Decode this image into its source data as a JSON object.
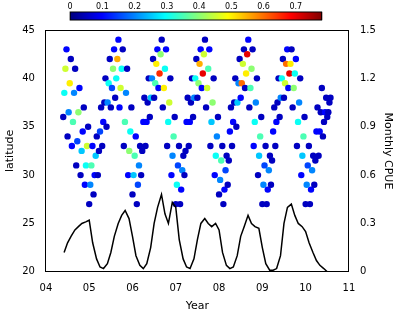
{
  "chart_data": {
    "type": "scatter",
    "x_label": "Year",
    "y_label": "latitude",
    "y2_label": "Monthly CPUE",
    "xlim": [
      4,
      11
    ],
    "xticks": [
      {
        "value": 4,
        "label": "04"
      },
      {
        "value": 5,
        "label": "05"
      },
      {
        "value": 6,
        "label": "06"
      },
      {
        "value": 7,
        "label": "07"
      },
      {
        "value": 8,
        "label": "08"
      },
      {
        "value": 9,
        "label": "09"
      },
      10,
      11
    ],
    "ylim": [
      20,
      45
    ],
    "yticks": [
      20,
      25,
      30,
      35,
      40,
      45
    ],
    "y2lim": [
      0,
      1.5
    ],
    "y2ticks": [
      0,
      0.3,
      0.6,
      0.9,
      1.2,
      1.5
    ],
    "grid": false,
    "colorbar": {
      "range": [
        0,
        0.78
      ],
      "ticks": [
        0,
        0.1,
        0.2,
        0.3,
        0.4,
        0.5,
        0.6,
        0.7
      ]
    },
    "series": [
      {
        "type": "scatter",
        "marker": "circle",
        "x": [
          4.4,
          4.425,
          4.45,
          4.475,
          4.5,
          4.525,
          4.55,
          4.575,
          4.6,
          4.625,
          4.65,
          4.675,
          4.7,
          4.725,
          4.75,
          4.775,
          4.8,
          4.825,
          4.85,
          4.875,
          4.9,
          4.925,
          4.95,
          4.975,
          5.0,
          5.025,
          5.05,
          5.075,
          5.1,
          5.125,
          5.15,
          5.175,
          5.2,
          5.225,
          5.25,
          5.275,
          5.3,
          5.325,
          5.35,
          5.375,
          5.4,
          5.425,
          5.45,
          5.475,
          5.5,
          5.525,
          5.55,
          5.575,
          5.6,
          5.625,
          5.65,
          5.675,
          5.7,
          5.725,
          5.75,
          5.775,
          5.8,
          5.825,
          5.85,
          5.875,
          5.9,
          5.925,
          5.95,
          5.975,
          6.0,
          6.025,
          6.05,
          6.075,
          6.1,
          6.125,
          6.15,
          6.175,
          6.2,
          6.225,
          6.25,
          6.275,
          6.3,
          6.325,
          6.35,
          6.375,
          6.4,
          6.425,
          6.45,
          6.475,
          6.5,
          6.525,
          6.55,
          6.575,
          6.6,
          6.625,
          6.65,
          6.675,
          6.7,
          6.725,
          6.75,
          6.775,
          6.8,
          6.825,
          6.85,
          6.875,
          6.9,
          6.925,
          6.95,
          6.975,
          7.0,
          7.025,
          7.05,
          7.075,
          7.1,
          7.125,
          7.15,
          7.175,
          7.2,
          7.225,
          7.25,
          7.275,
          7.3,
          7.325,
          7.35,
          7.375,
          7.4,
          7.425,
          7.45,
          7.475,
          7.5,
          7.525,
          7.55,
          7.575,
          7.6,
          7.625,
          7.65,
          7.675,
          7.7,
          7.725,
          7.75,
          7.775,
          7.8,
          7.825,
          7.85,
          7.875,
          7.9,
          7.925,
          7.95,
          7.975,
          8.0,
          8.025,
          8.05,
          8.075,
          8.1,
          8.125,
          8.15,
          8.175,
          8.2,
          8.225,
          8.25,
          8.275,
          8.3,
          8.325,
          8.35,
          8.375,
          8.4,
          8.425,
          8.45,
          8.475,
          8.5,
          8.525,
          8.55,
          8.575,
          8.6,
          8.625,
          8.65,
          8.675,
          8.7,
          8.725,
          8.75,
          8.775,
          8.8,
          8.825,
          8.85,
          8.875,
          8.9,
          8.925,
          8.95,
          8.975,
          9.0,
          9.025,
          9.05,
          9.075,
          9.1,
          9.125,
          9.15,
          9.175,
          9.2,
          9.225,
          9.25,
          9.275,
          9.3,
          9.325,
          9.35,
          9.375,
          9.4,
          9.425,
          9.45,
          9.475,
          9.5,
          9.525,
          9.55,
          9.575,
          9.6,
          9.625,
          9.65,
          9.675,
          9.7,
          9.725,
          9.75,
          9.775,
          9.8,
          9.825,
          9.85,
          9.875,
          9.9,
          9.925,
          9.95,
          9.975,
          10.0,
          10.025,
          10.05,
          10.075,
          10.1,
          10.125,
          10.15,
          10.175,
          10.2,
          10.225,
          10.25,
          10.275,
          10.3,
          10.325,
          10.35,
          10.375,
          10.4,
          10.425,
          10.45,
          10.475,
          10.5,
          10.525,
          10.55,
          10.575
        ],
        "values": [
          36,
          38.5,
          41,
          43,
          34,
          36.5,
          39.5,
          42,
          33,
          35.5,
          38.5,
          41,
          31,
          33.5,
          36.5,
          39,
          30,
          32.5,
          34.5,
          37,
          29,
          31,
          33,
          35,
          27,
          29,
          31,
          33,
          28,
          30,
          32,
          34,
          30,
          32.5,
          34.5,
          37,
          33,
          35.5,
          37.5,
          40,
          35,
          37.5,
          39.5,
          42,
          37,
          39,
          41,
          43,
          38,
          40,
          42,
          44,
          37,
          39,
          41,
          43,
          33,
          35.5,
          38.5,
          41,
          30,
          32.5,
          34.5,
          37,
          28,
          30,
          32,
          34,
          27,
          29,
          31,
          33,
          30,
          32.5,
          35.5,
          38,
          33,
          35.5,
          37.5,
          40,
          36,
          38,
          40,
          42,
          38,
          39.5,
          41.5,
          43,
          39,
          40.5,
          42.5,
          44,
          37,
          39,
          41,
          43,
          33,
          35.5,
          37.5,
          40,
          30,
          32,
          34,
          36,
          27,
          29,
          31,
          33,
          27,
          28.5,
          30.5,
          32,
          30,
          32.5,
          35.5,
          38,
          33,
          35.5,
          37.5,
          40,
          36,
          38,
          40,
          42,
          38,
          39.5,
          41.5,
          43,
          39,
          40.5,
          42.5,
          44,
          37,
          39,
          41,
          43,
          33,
          35.5,
          37.5,
          40,
          30,
          32,
          34,
          36,
          28,
          29.5,
          31.5,
          33,
          27,
          28.5,
          30.5,
          32,
          29,
          31.5,
          34.5,
          37,
          33,
          35.5,
          37.5,
          40,
          35,
          37.5,
          39.5,
          42,
          38,
          39.5,
          41.5,
          43,
          39,
          40.5,
          42.5,
          44,
          37,
          39,
          41,
          43,
          33,
          35.5,
          37.5,
          40,
          30,
          32,
          34,
          36,
          27,
          29,
          31,
          33,
          27,
          28.5,
          30.5,
          32,
          29,
          31.5,
          34.5,
          37,
          33,
          35.5,
          37.5,
          40,
          36,
          38,
          40,
          42,
          38,
          39.5,
          41.5,
          43,
          39,
          40.5,
          41.5,
          43,
          37,
          39,
          40.5,
          42,
          33,
          35.5,
          37.5,
          40,
          30,
          32,
          34,
          36,
          27,
          29,
          31,
          33,
          27,
          28.5,
          30.5,
          32,
          29,
          31.5,
          34.5,
          37,
          32,
          34.5,
          36.5,
          39,
          34,
          35.5,
          36.5,
          38,
          36,
          36.5,
          37.5,
          38
        ],
        "color_values": [
          0.05,
          0.3,
          0.45,
          0.1,
          0.05,
          0.2,
          0.5,
          0.05,
          0.1,
          0.35,
          0.2,
          0.05,
          0.05,
          0.15,
          0.4,
          0.1,
          0.05,
          0.25,
          0.1,
          0.05,
          0.1,
          0.3,
          0.45,
          0.05,
          0.05,
          0.2,
          0.35,
          0.1,
          0.05,
          0.1,
          0.25,
          0.05,
          0.05,
          0.05,
          0.15,
          0.05,
          0.05,
          0.1,
          0.05,
          0.05,
          0.05,
          0.2,
          0.3,
          0.05,
          0.05,
          0.15,
          0.4,
          0.1,
          0.05,
          0.3,
          0.55,
          0.1,
          0.1,
          0.45,
          0.3,
          0.05,
          0.05,
          0.35,
          0.2,
          0.05,
          0.1,
          0.4,
          0.3,
          0.05,
          0.05,
          0.25,
          0.35,
          0.1,
          0.05,
          0.15,
          0.2,
          0.05,
          0.05,
          0.05,
          0.1,
          0.05,
          0.05,
          0.1,
          0.05,
          0.05,
          0.05,
          0.25,
          0.2,
          0.05,
          0.05,
          0.35,
          0.5,
          0.1,
          0.1,
          0.65,
          0.4,
          0.05,
          0.05,
          0.5,
          0.3,
          0.1,
          0.05,
          0.3,
          0.45,
          0.05,
          0.1,
          0.2,
          0.35,
          0.05,
          0.05,
          0.3,
          0.15,
          0.05,
          0.05,
          0.1,
          0.2,
          0.05,
          0.05,
          0.05,
          0.1,
          0.05,
          0.05,
          0.1,
          0.05,
          0.05,
          0.05,
          0.2,
          0.3,
          0.05,
          0.05,
          0.4,
          0.55,
          0.1,
          0.1,
          0.7,
          0.45,
          0.05,
          0.05,
          0.45,
          0.35,
          0.1,
          0.05,
          0.25,
          0.4,
          0.05,
          0.1,
          0.3,
          0.2,
          0.05,
          0.05,
          0.2,
          0.35,
          0.05,
          0.05,
          0.1,
          0.15,
          0.05,
          0.05,
          0.05,
          0.1,
          0.05,
          0.05,
          0.1,
          0.05,
          0.05,
          0.05,
          0.25,
          0.2,
          0.05,
          0.1,
          0.6,
          0.45,
          0.05,
          0.05,
          0.5,
          0.7,
          0.1,
          0.05,
          0.35,
          0.4,
          0.05,
          0.1,
          0.3,
          0.2,
          0.05,
          0.05,
          0.25,
          0.35,
          0.05,
          0.05,
          0.2,
          0.15,
          0.05,
          0.05,
          0.1,
          0.2,
          0.05,
          0.05,
          0.05,
          0.1,
          0.05,
          0.05,
          0.1,
          0.05,
          0.05,
          0.05,
          0.2,
          0.3,
          0.05,
          0.05,
          0.45,
          0.6,
          0.1,
          0.1,
          0.7,
          0.5,
          0.05,
          0.05,
          0.4,
          0.3,
          0.1,
          0.05,
          0.3,
          0.2,
          0.05,
          0.1,
          0.25,
          0.35,
          0.05,
          0.05,
          0.2,
          0.15,
          0.05,
          0.05,
          0.1,
          0.2,
          0.05,
          0.05,
          0.05,
          0.1,
          0.05,
          0.05,
          0.1,
          0.05,
          0.05,
          0.05,
          0.05,
          0.1,
          0.05,
          0.05,
          0.05,
          0.05,
          0.05
        ]
      },
      {
        "type": "line",
        "axis": "y2",
        "color": "#000000",
        "line_style": "solid",
        "x": [
          4.42,
          4.5,
          4.58,
          4.67,
          4.75,
          4.83,
          4.92,
          5.0,
          5.08,
          5.17,
          5.25,
          5.33,
          5.42,
          5.5,
          5.58,
          5.67,
          5.75,
          5.83,
          5.92,
          6.0,
          6.08,
          6.17,
          6.25,
          6.33,
          6.42,
          6.5,
          6.58,
          6.67,
          6.75,
          6.83,
          6.92,
          7.0,
          7.08,
          7.17,
          7.25,
          7.33,
          7.42,
          7.5,
          7.58,
          7.67,
          7.75,
          7.83,
          7.92,
          8.0,
          8.08,
          8.17,
          8.25,
          8.33,
          8.42,
          8.5,
          8.58,
          8.67,
          8.75,
          8.83,
          8.92,
          9.0,
          9.08,
          9.17,
          9.25,
          9.33,
          9.42,
          9.5,
          9.58,
          9.67,
          9.75,
          9.83,
          9.92,
          10.0,
          10.08,
          10.17,
          10.25,
          10.33,
          10.42,
          10.5
        ],
        "values": [
          0.12,
          0.18,
          0.22,
          0.26,
          0.28,
          0.3,
          0.31,
          0.32,
          0.18,
          0.08,
          0.03,
          0.02,
          0.05,
          0.12,
          0.22,
          0.3,
          0.35,
          0.38,
          0.33,
          0.22,
          0.1,
          0.04,
          0.02,
          0.05,
          0.15,
          0.3,
          0.4,
          0.48,
          0.36,
          0.3,
          0.43,
          0.4,
          0.2,
          0.08,
          0.03,
          0.02,
          0.08,
          0.2,
          0.3,
          0.33,
          0.3,
          0.28,
          0.3,
          0.26,
          0.12,
          0.04,
          0.02,
          0.03,
          0.1,
          0.22,
          0.28,
          0.35,
          0.3,
          0.28,
          0.27,
          0.15,
          0.05,
          0.01,
          0.01,
          0.02,
          0.1,
          0.3,
          0.4,
          0.42,
          0.35,
          0.3,
          0.28,
          0.25,
          0.18,
          0.12,
          0.07,
          0.04,
          0.02,
          0
        ]
      }
    ]
  }
}
